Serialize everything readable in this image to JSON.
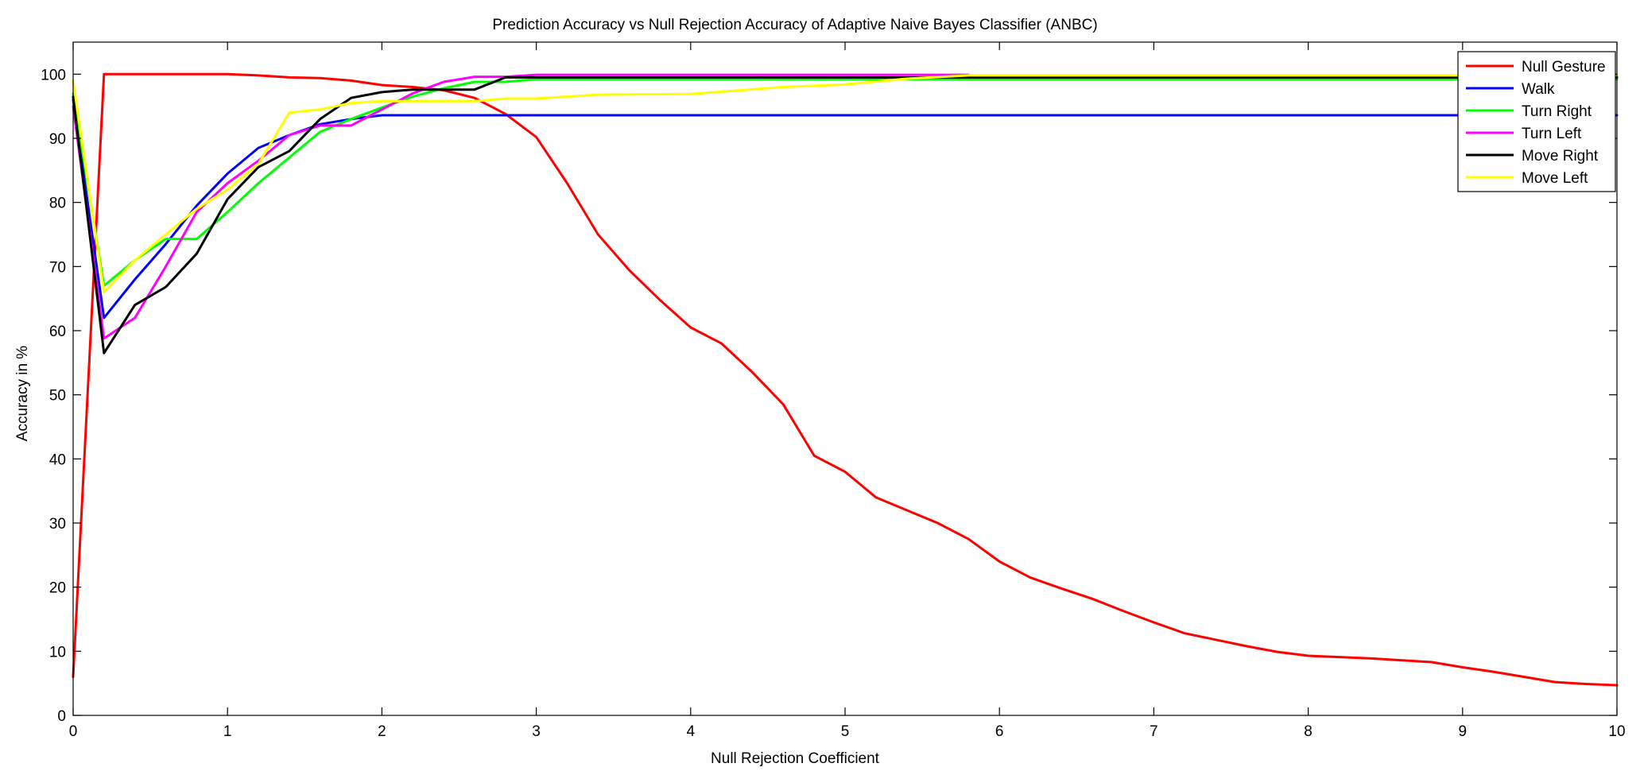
{
  "chart_data": {
    "type": "line",
    "title": "Prediction Accuracy vs Null Rejection Accuracy of Adaptive Naive Bayes Classifier (ANBC)",
    "xlabel": "Null Rejection Coefficient",
    "ylabel": "Accuracy in %",
    "xlim": [
      0,
      10
    ],
    "ylim": [
      0,
      105
    ],
    "xticks": [
      0,
      1,
      2,
      3,
      4,
      5,
      6,
      7,
      8,
      9,
      10
    ],
    "yticks": [
      0,
      10,
      20,
      30,
      40,
      50,
      60,
      70,
      80,
      90,
      100
    ],
    "grid": false,
    "legend_position": "top-right",
    "series": [
      {
        "name": "Null Gesture",
        "color": "#ff0000",
        "x": [
          0,
          0.2,
          0.4,
          0.6,
          0.8,
          1.0,
          1.2,
          1.4,
          1.6,
          1.8,
          2.0,
          2.2,
          2.4,
          2.6,
          2.8,
          3.0,
          3.2,
          3.4,
          3.6,
          3.8,
          4.0,
          4.2,
          4.4,
          4.6,
          4.8,
          5.0,
          5.2,
          5.4,
          5.6,
          5.8,
          6.0,
          6.2,
          6.4,
          6.6,
          6.8,
          7.0,
          7.2,
          7.4,
          7.6,
          7.8,
          8.0,
          8.2,
          8.4,
          8.6,
          8.8,
          9.0,
          9.2,
          9.4,
          9.6,
          9.8,
          10.0
        ],
        "y": [
          6,
          100,
          100,
          100,
          100,
          100,
          99.8,
          99.5,
          99.4,
          99.0,
          98.3,
          98.0,
          97.5,
          96.3,
          93.8,
          90.2,
          83,
          75,
          69.5,
          64.8,
          60.5,
          58,
          53.5,
          48.5,
          40.5,
          38,
          34,
          32,
          30,
          27.5,
          24,
          21.5,
          19.8,
          18.2,
          16.3,
          14.5,
          12.8,
          11.8,
          10.8,
          9.9,
          9.3,
          9.1,
          8.9,
          8.6,
          8.3,
          7.5,
          6.8,
          6.0,
          5.2,
          4.9,
          4.7
        ]
      },
      {
        "name": "Walk",
        "color": "#0000ff",
        "x": [
          0,
          0.2,
          0.4,
          0.6,
          0.8,
          1.0,
          1.2,
          1.4,
          1.6,
          1.8,
          2.0,
          2.2,
          2.4,
          2.6,
          2.8,
          3.0,
          4.0,
          5.0,
          6.0,
          7.0,
          8.0,
          9.0,
          10.0
        ],
        "y": [
          96,
          62,
          68,
          73.5,
          79.5,
          84.5,
          88.5,
          90.5,
          92.2,
          93.0,
          93.6,
          93.6,
          93.6,
          93.6,
          93.6,
          93.6,
          93.6,
          93.6,
          93.6,
          93.6,
          93.6,
          93.6,
          93.6
        ]
      },
      {
        "name": "Turn Right",
        "color": "#00ff00",
        "x": [
          0,
          0.2,
          0.4,
          0.6,
          0.8,
          1.0,
          1.2,
          1.4,
          1.6,
          1.8,
          2.0,
          2.2,
          2.4,
          2.6,
          2.8,
          3.0,
          4.0,
          5.0,
          6.0,
          7.0,
          8.0,
          9.0,
          10.0
        ],
        "y": [
          97,
          67,
          71,
          74.3,
          74.3,
          78.5,
          83,
          87,
          91,
          93,
          94.8,
          96.5,
          97.8,
          98.8,
          98.8,
          99.2,
          99.2,
          99.2,
          99.2,
          99.2,
          99.2,
          99.2,
          99.2
        ]
      },
      {
        "name": "Turn Left",
        "color": "#ff00ff",
        "x": [
          0,
          0.2,
          0.4,
          0.6,
          0.8,
          1.0,
          1.2,
          1.4,
          1.6,
          1.8,
          2.0,
          2.2,
          2.4,
          2.6,
          2.8,
          3.0,
          4.0,
          5.0,
          5.8
        ],
        "y": [
          95,
          58.8,
          62,
          70,
          78.5,
          83,
          86.5,
          90.5,
          92,
          92,
          94.5,
          97,
          98.8,
          99.6,
          99.6,
          99.9,
          99.9,
          99.9,
          99.9
        ]
      },
      {
        "name": "Move Right",
        "color": "#000000",
        "x": [
          0,
          0.2,
          0.4,
          0.6,
          0.8,
          1.0,
          1.2,
          1.4,
          1.6,
          1.8,
          2.0,
          2.2,
          2.4,
          2.6,
          2.8,
          3.0,
          4.0,
          5.0,
          6.0,
          7.0,
          8.0,
          9.0,
          10.0
        ],
        "y": [
          96.5,
          56.5,
          64,
          66.8,
          72,
          80.5,
          85.5,
          88,
          93,
          96.3,
          97.2,
          97.6,
          97.6,
          97.6,
          99.5,
          99.5,
          99.5,
          99.5,
          99.5,
          99.5,
          99.5,
          99.5,
          99.5
        ]
      },
      {
        "name": "Move Left",
        "color": "#ffff00",
        "x": [
          0,
          0.2,
          0.4,
          0.6,
          0.8,
          1.0,
          1.2,
          1.4,
          1.6,
          1.8,
          2.0,
          2.2,
          2.4,
          2.6,
          2.8,
          3.0,
          3.4,
          4.0,
          4.6,
          5.0,
          5.4,
          5.8,
          6.0,
          7.0,
          8.0,
          9.0,
          10.0
        ],
        "y": [
          99,
          66,
          71,
          75,
          79,
          82,
          86,
          94,
          94.5,
          95.5,
          95.8,
          95.8,
          95.8,
          95.8,
          96.2,
          96.2,
          96.8,
          96.9,
          98,
          98.4,
          99.3,
          99.8,
          99.8,
          99.8,
          99.8,
          99.8,
          99.8
        ]
      }
    ]
  }
}
